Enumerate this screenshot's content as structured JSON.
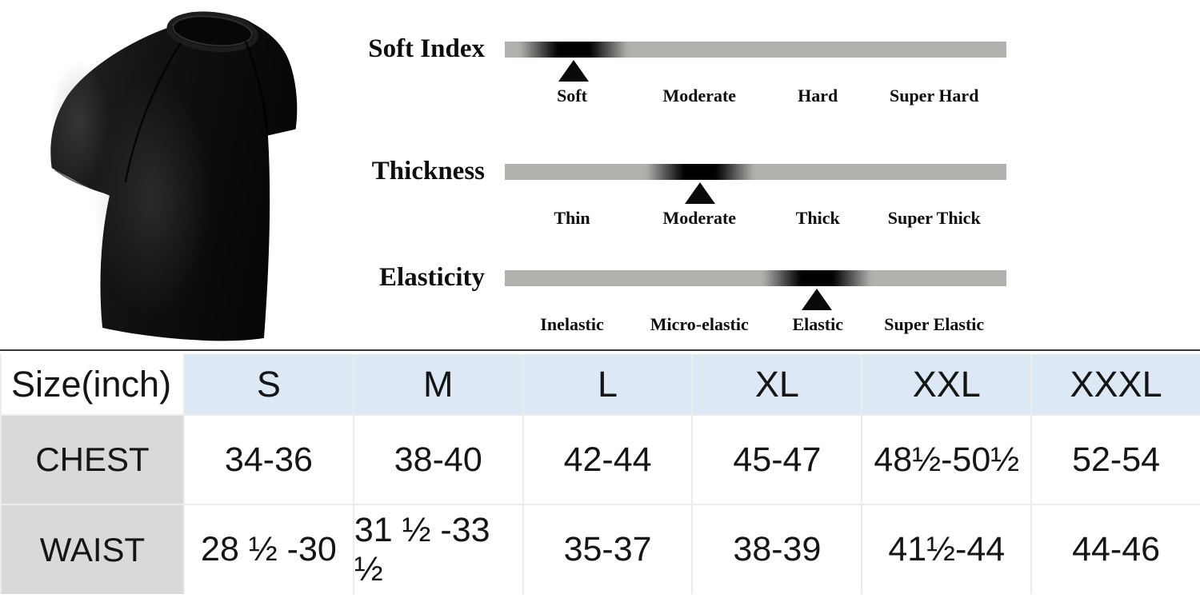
{
  "product": {
    "image_label": "black short-sleeve crew-neck t-shirt"
  },
  "attributes": [
    {
      "title": "Soft Index",
      "selected": "Soft",
      "marker_pos_pct": 13.7,
      "labels": [
        "Soft",
        "Moderate",
        "Hard",
        "Super Hard"
      ]
    },
    {
      "title": "Thickness",
      "selected": "Moderate",
      "marker_pos_pct": 38.9,
      "labels": [
        "Thin",
        "Moderate",
        "Thick",
        "Super Thick"
      ]
    },
    {
      "title": "Elasticity",
      "selected": "Elastic",
      "marker_pos_pct": 62.2,
      "labels": [
        "Inelastic",
        "Micro-elastic",
        "Elastic",
        "Super Elastic"
      ]
    }
  ],
  "size_table": {
    "unit_header": "Size(inch)",
    "columns": [
      "S",
      "M",
      "L",
      "XL",
      "XXL",
      "XXXL"
    ],
    "rows": [
      {
        "label": "CHEST",
        "values": [
          "34-36",
          "38-40",
          "42-44",
          "45-47",
          "48½-50½",
          "52-54"
        ]
      },
      {
        "label": "WAIST",
        "values": [
          "28 ½ -30",
          "31 ½ -33 ½",
          "35-37",
          "38-39",
          "41½-44",
          "44-46"
        ]
      }
    ]
  },
  "colors": {
    "bar_gray": "#b3b1ae",
    "header_blue": "#dce9f5",
    "cell_gray": "#d9d9d9",
    "marker_black": "#0a0a0a",
    "table_top_border": "#3a3a3a"
  }
}
